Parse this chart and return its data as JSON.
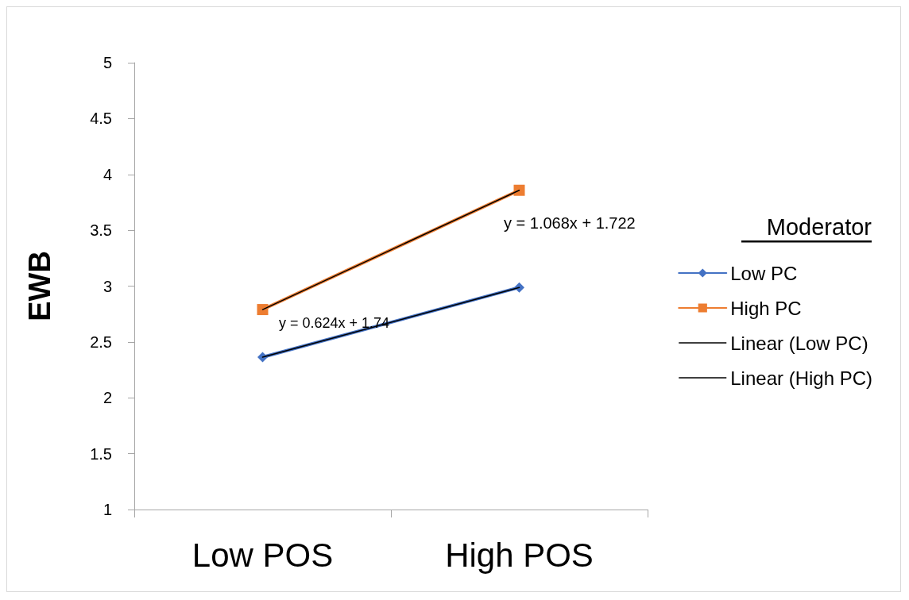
{
  "chart_data": {
    "type": "line",
    "ylabel": "EWB",
    "legend_title": "Moderator",
    "categories": [
      "Low POS",
      "High POS"
    ],
    "series": [
      {
        "name": "Low PC",
        "color": "#4472c4",
        "values": [
          2.364,
          2.988
        ],
        "marker": "diamond"
      },
      {
        "name": "High PC",
        "color": "#ed7d31",
        "values": [
          2.79,
          3.858
        ],
        "marker": "square"
      },
      {
        "name": "Linear (Low PC)",
        "color": "#000000",
        "values": [
          2.364,
          2.988
        ],
        "marker": "none"
      },
      {
        "name": "Linear (High PC)",
        "color": "#000000",
        "values": [
          2.79,
          3.858
        ],
        "marker": "none"
      }
    ],
    "annotations": [
      "y = 0.624x + 1.74",
      "y = 1.068x + 1.722"
    ],
    "ylim": [
      1,
      5
    ],
    "yticks": [
      1,
      1.5,
      2,
      2.5,
      3,
      3.5,
      4,
      4.5,
      5
    ],
    "grid": false,
    "legend": "right"
  }
}
